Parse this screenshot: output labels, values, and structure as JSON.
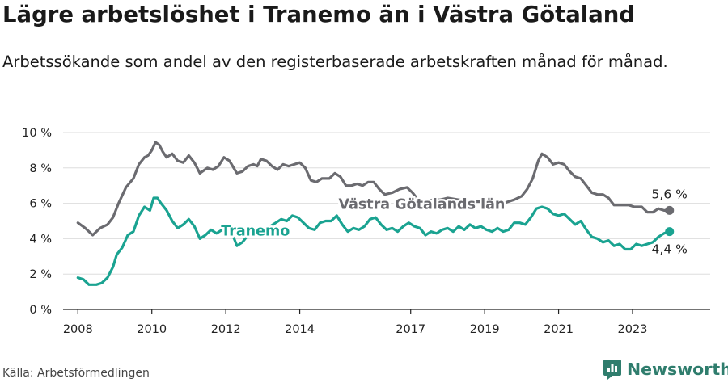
{
  "header": {
    "title": "Lägre arbetslöshet i Tranemo än i Västra Götaland",
    "subtitle": "Arbetssökande som andel av den registerbaserade arbetskraften månad för månad."
  },
  "footer": {
    "source": "Källa: Arbetsförmedlingen",
    "brand": "Newsworthy"
  },
  "colors": {
    "tranemo": "#1aa391",
    "vgl": "#6b6b70",
    "grid": "#dddddd",
    "brand": "#2f7d6d"
  },
  "chart_data": {
    "type": "line",
    "title": "Lägre arbetslöshet i Tranemo än i Västra Götaland",
    "xlabel": "",
    "ylabel": "",
    "ylim": [
      0,
      10
    ],
    "yticks": [
      0,
      2,
      4,
      6,
      8,
      10
    ],
    "ytick_labels": [
      "0 %",
      "2 %",
      "4 %",
      "6 %",
      "8 %",
      "10 %"
    ],
    "xlim": [
      2007.6,
      2025.1
    ],
    "xticks": [
      2008,
      2010,
      2012,
      2014,
      2017,
      2019,
      2021,
      2023
    ],
    "xtick_labels": [
      "2008",
      "2010",
      "2012",
      "2014",
      "2017",
      "2019",
      "2021",
      "2023"
    ],
    "grid": true,
    "series": [
      {
        "name": "Västra Götalands län",
        "label": "Västra Götalands län",
        "color": "#6b6b70",
        "end_label": "5,6 %",
        "points": [
          [
            2008.0,
            4.9
          ],
          [
            2008.2,
            4.6
          ],
          [
            2008.4,
            4.2
          ],
          [
            2008.6,
            4.6
          ],
          [
            2008.8,
            4.8
          ],
          [
            2008.95,
            5.2
          ],
          [
            2009.1,
            6.0
          ],
          [
            2009.3,
            6.9
          ],
          [
            2009.5,
            7.4
          ],
          [
            2009.65,
            8.2
          ],
          [
            2009.8,
            8.6
          ],
          [
            2009.9,
            8.7
          ],
          [
            2010.0,
            9.0
          ],
          [
            2010.1,
            9.45
          ],
          [
            2010.2,
            9.3
          ],
          [
            2010.3,
            8.9
          ],
          [
            2010.4,
            8.6
          ],
          [
            2010.55,
            8.8
          ],
          [
            2010.7,
            8.4
          ],
          [
            2010.85,
            8.3
          ],
          [
            2011.0,
            8.7
          ],
          [
            2011.15,
            8.3
          ],
          [
            2011.3,
            7.7
          ],
          [
            2011.5,
            8.0
          ],
          [
            2011.65,
            7.9
          ],
          [
            2011.8,
            8.1
          ],
          [
            2011.95,
            8.6
          ],
          [
            2012.1,
            8.4
          ],
          [
            2012.3,
            7.7
          ],
          [
            2012.45,
            7.8
          ],
          [
            2012.6,
            8.1
          ],
          [
            2012.75,
            8.2
          ],
          [
            2012.85,
            8.1
          ],
          [
            2012.95,
            8.5
          ],
          [
            2013.1,
            8.4
          ],
          [
            2013.25,
            8.1
          ],
          [
            2013.4,
            7.9
          ],
          [
            2013.55,
            8.2
          ],
          [
            2013.7,
            8.1
          ],
          [
            2013.85,
            8.2
          ],
          [
            2014.0,
            8.3
          ],
          [
            2014.15,
            8.0
          ],
          [
            2014.3,
            7.3
          ],
          [
            2014.45,
            7.2
          ],
          [
            2014.6,
            7.4
          ],
          [
            2014.8,
            7.4
          ],
          [
            2014.95,
            7.7
          ],
          [
            2015.1,
            7.5
          ],
          [
            2015.25,
            7.0
          ],
          [
            2015.4,
            7.0
          ],
          [
            2015.55,
            7.1
          ],
          [
            2015.7,
            7.0
          ],
          [
            2015.85,
            7.2
          ],
          [
            2016.0,
            7.2
          ],
          [
            2016.15,
            6.8
          ],
          [
            2016.3,
            6.5
          ],
          [
            2016.5,
            6.6
          ],
          [
            2016.7,
            6.8
          ],
          [
            2016.9,
            6.9
          ],
          [
            2017.05,
            6.6
          ],
          [
            2017.2,
            6.2
          ],
          [
            2017.4,
            6.1
          ],
          [
            2017.6,
            6.2
          ],
          [
            2017.8,
            6.2
          ],
          [
            2018.0,
            6.3
          ],
          [
            2018.3,
            6.2
          ],
          [
            2018.6,
            6.1
          ],
          [
            2018.9,
            6.1
          ],
          [
            2019.2,
            6.0
          ],
          [
            2019.5,
            6.0
          ],
          [
            2019.8,
            6.2
          ],
          [
            2020.0,
            6.4
          ],
          [
            2020.15,
            6.8
          ],
          [
            2020.3,
            7.4
          ],
          [
            2020.45,
            8.4
          ],
          [
            2020.55,
            8.8
          ],
          [
            2020.7,
            8.6
          ],
          [
            2020.85,
            8.2
          ],
          [
            2021.0,
            8.3
          ],
          [
            2021.15,
            8.2
          ],
          [
            2021.3,
            7.8
          ],
          [
            2021.45,
            7.5
          ],
          [
            2021.6,
            7.4
          ],
          [
            2021.75,
            7.0
          ],
          [
            2021.9,
            6.6
          ],
          [
            2022.05,
            6.5
          ],
          [
            2022.2,
            6.5
          ],
          [
            2022.35,
            6.3
          ],
          [
            2022.5,
            5.9
          ],
          [
            2022.7,
            5.9
          ],
          [
            2022.9,
            5.9
          ],
          [
            2023.05,
            5.8
          ],
          [
            2023.25,
            5.8
          ],
          [
            2023.4,
            5.5
          ],
          [
            2023.55,
            5.5
          ],
          [
            2023.7,
            5.7
          ],
          [
            2023.85,
            5.6
          ],
          [
            2024.0,
            5.6
          ]
        ]
      },
      {
        "name": "Tranemo",
        "label": "Tranemo",
        "color": "#1aa391",
        "end_label": "4,4 %",
        "points": [
          [
            2008.0,
            1.8
          ],
          [
            2008.15,
            1.7
          ],
          [
            2008.3,
            1.4
          ],
          [
            2008.5,
            1.4
          ],
          [
            2008.65,
            1.5
          ],
          [
            2008.8,
            1.8
          ],
          [
            2008.95,
            2.4
          ],
          [
            2009.05,
            3.1
          ],
          [
            2009.2,
            3.5
          ],
          [
            2009.35,
            4.2
          ],
          [
            2009.5,
            4.4
          ],
          [
            2009.65,
            5.3
          ],
          [
            2009.8,
            5.8
          ],
          [
            2009.95,
            5.6
          ],
          [
            2010.05,
            6.3
          ],
          [
            2010.15,
            6.3
          ],
          [
            2010.25,
            6.0
          ],
          [
            2010.4,
            5.6
          ],
          [
            2010.55,
            5.0
          ],
          [
            2010.7,
            4.6
          ],
          [
            2010.85,
            4.8
          ],
          [
            2011.0,
            5.1
          ],
          [
            2011.15,
            4.7
          ],
          [
            2011.3,
            4.0
          ],
          [
            2011.45,
            4.2
          ],
          [
            2011.6,
            4.5
          ],
          [
            2011.75,
            4.3
          ],
          [
            2011.9,
            4.5
          ],
          [
            2012.0,
            4.3
          ],
          [
            2012.15,
            4.4
          ],
          [
            2012.3,
            3.6
          ],
          [
            2012.45,
            3.8
          ],
          [
            2012.6,
            4.2
          ],
          [
            2012.75,
            4.5
          ],
          [
            2012.9,
            4.6
          ],
          [
            2013.05,
            4.5
          ],
          [
            2013.2,
            4.7
          ],
          [
            2013.35,
            4.9
          ],
          [
            2013.5,
            5.1
          ],
          [
            2013.65,
            5.0
          ],
          [
            2013.8,
            5.3
          ],
          [
            2013.95,
            5.2
          ],
          [
            2014.1,
            4.9
          ],
          [
            2014.25,
            4.6
          ],
          [
            2014.4,
            4.5
          ],
          [
            2014.55,
            4.9
          ],
          [
            2014.7,
            5.0
          ],
          [
            2014.85,
            5.0
          ],
          [
            2015.0,
            5.3
          ],
          [
            2015.15,
            4.8
          ],
          [
            2015.3,
            4.4
          ],
          [
            2015.45,
            4.6
          ],
          [
            2015.6,
            4.5
          ],
          [
            2015.75,
            4.7
          ],
          [
            2015.9,
            5.1
          ],
          [
            2016.05,
            5.2
          ],
          [
            2016.2,
            4.8
          ],
          [
            2016.35,
            4.5
          ],
          [
            2016.5,
            4.6
          ],
          [
            2016.65,
            4.4
          ],
          [
            2016.8,
            4.7
          ],
          [
            2016.95,
            4.9
          ],
          [
            2017.1,
            4.7
          ],
          [
            2017.25,
            4.6
          ],
          [
            2017.4,
            4.2
          ],
          [
            2017.55,
            4.4
          ],
          [
            2017.7,
            4.3
          ],
          [
            2017.85,
            4.5
          ],
          [
            2018.0,
            4.6
          ],
          [
            2018.15,
            4.4
          ],
          [
            2018.3,
            4.7
          ],
          [
            2018.45,
            4.5
          ],
          [
            2018.6,
            4.8
          ],
          [
            2018.75,
            4.6
          ],
          [
            2018.9,
            4.7
          ],
          [
            2019.05,
            4.5
          ],
          [
            2019.2,
            4.4
          ],
          [
            2019.35,
            4.6
          ],
          [
            2019.5,
            4.4
          ],
          [
            2019.65,
            4.5
          ],
          [
            2019.8,
            4.9
          ],
          [
            2019.95,
            4.9
          ],
          [
            2020.1,
            4.8
          ],
          [
            2020.25,
            5.2
          ],
          [
            2020.4,
            5.7
          ],
          [
            2020.55,
            5.8
          ],
          [
            2020.7,
            5.7
          ],
          [
            2020.85,
            5.4
          ],
          [
            2021.0,
            5.3
          ],
          [
            2021.15,
            5.4
          ],
          [
            2021.3,
            5.1
          ],
          [
            2021.45,
            4.8
          ],
          [
            2021.6,
            5.0
          ],
          [
            2021.75,
            4.5
          ],
          [
            2021.9,
            4.1
          ],
          [
            2022.05,
            4.0
          ],
          [
            2022.2,
            3.8
          ],
          [
            2022.35,
            3.9
          ],
          [
            2022.5,
            3.6
          ],
          [
            2022.65,
            3.7
          ],
          [
            2022.8,
            3.4
          ],
          [
            2022.95,
            3.4
          ],
          [
            2023.1,
            3.7
          ],
          [
            2023.25,
            3.6
          ],
          [
            2023.4,
            3.7
          ],
          [
            2023.55,
            3.8
          ],
          [
            2023.7,
            4.1
          ],
          [
            2023.85,
            4.3
          ],
          [
            2024.0,
            4.4
          ]
        ]
      }
    ]
  }
}
